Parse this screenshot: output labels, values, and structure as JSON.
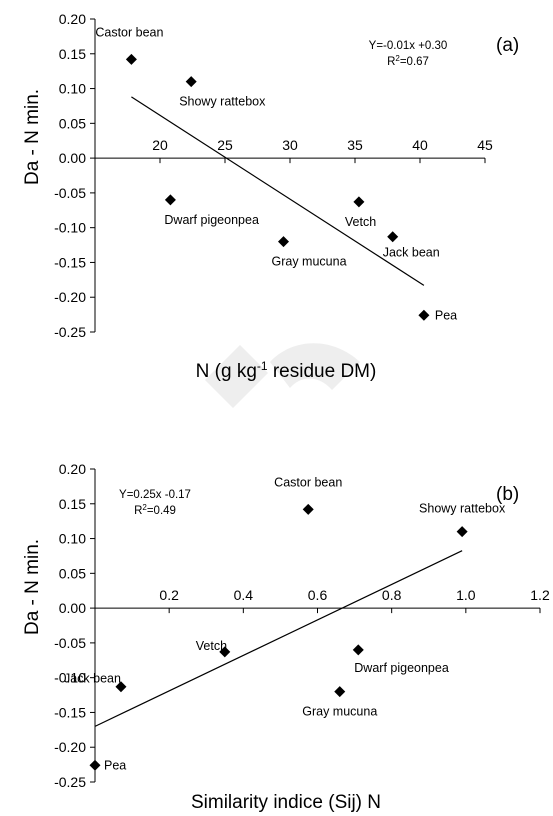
{
  "chart_data": [
    {
      "type": "scatter",
      "panel_label": "(a)",
      "xlabel": {
        "text": "N (g kg",
        "superscript": "-1",
        "suffix": " residue DM)"
      },
      "ylabel": "Da - N min.",
      "xlim": [
        15,
        45
      ],
      "ylim": [
        -0.25,
        0.2
      ],
      "xticks": [
        "20",
        "25",
        "30",
        "35",
        "40",
        "45"
      ],
      "yticks": [
        "0.20",
        "0.15",
        "0.10",
        "0.05",
        "0.00",
        "-0.05",
        "-0.10",
        "-0.15",
        "-0.20",
        "-0.25"
      ],
      "x_axis_at_y": 0,
      "grid": false,
      "points": [
        {
          "label": "Castor bean",
          "x": 17.8,
          "y": 0.142
        },
        {
          "label": "Showy rattebox",
          "x": 22.4,
          "y": 0.11
        },
        {
          "label": "Dwarf pigeonpea",
          "x": 20.8,
          "y": -0.06
        },
        {
          "label": "Gray mucuna",
          "x": 29.5,
          "y": -0.12
        },
        {
          "label": "Vetch",
          "x": 35.3,
          "y": -0.063
        },
        {
          "label": "Jack bean",
          "x": 37.9,
          "y": -0.113
        },
        {
          "label": "Pea",
          "x": 40.3,
          "y": -0.226
        }
      ],
      "trendline": {
        "x": [
          17.8,
          40.3
        ],
        "y": [
          0.088,
          -0.183
        ]
      },
      "equation": {
        "line1": "Y=-0.01x +0.30",
        "line2_prefix": "R",
        "line2_sup": "2",
        "line2_suffix": "=0.67"
      }
    },
    {
      "type": "scatter",
      "panel_label": "(b)",
      "xlabel": {
        "text": "Similarity indice (Sij) N",
        "superscript": "",
        "suffix": ""
      },
      "ylabel": "Da - N min.",
      "xlim": [
        0,
        1.2
      ],
      "ylim": [
        -0.25,
        0.2
      ],
      "xticks": [
        "0.2",
        "0.4",
        "0.6",
        "0.8",
        "1.0",
        "1.2"
      ],
      "yticks": [
        "0.20",
        "0.15",
        "0.10",
        "0.05",
        "0.00",
        "-0.05",
        "-0.10",
        "-0.15",
        "-0.20",
        "-0.25"
      ],
      "x_axis_at_y": 0,
      "grid": false,
      "points": [
        {
          "label": "Castor bean",
          "x": 0.575,
          "y": 0.142
        },
        {
          "label": "Showy rattebox",
          "x": 0.99,
          "y": 0.11
        },
        {
          "label": "Dwarf pigeonpea",
          "x": 0.71,
          "y": -0.06
        },
        {
          "label": "Gray mucuna",
          "x": 0.66,
          "y": -0.12
        },
        {
          "label": "Vetch",
          "x": 0.35,
          "y": -0.063
        },
        {
          "label": "Jack bean",
          "x": 0.07,
          "y": -0.113
        },
        {
          "label": "Pea",
          "x": 0.0,
          "y": -0.226
        }
      ],
      "trendline": {
        "x": [
          0.0,
          0.99
        ],
        "y": [
          -0.17,
          0.0825
        ]
      },
      "equation": {
        "line1": "Y=0.25x -0.17",
        "line2_prefix": "R",
        "line2_sup": "2",
        "line2_suffix": "=0.49"
      }
    }
  ]
}
